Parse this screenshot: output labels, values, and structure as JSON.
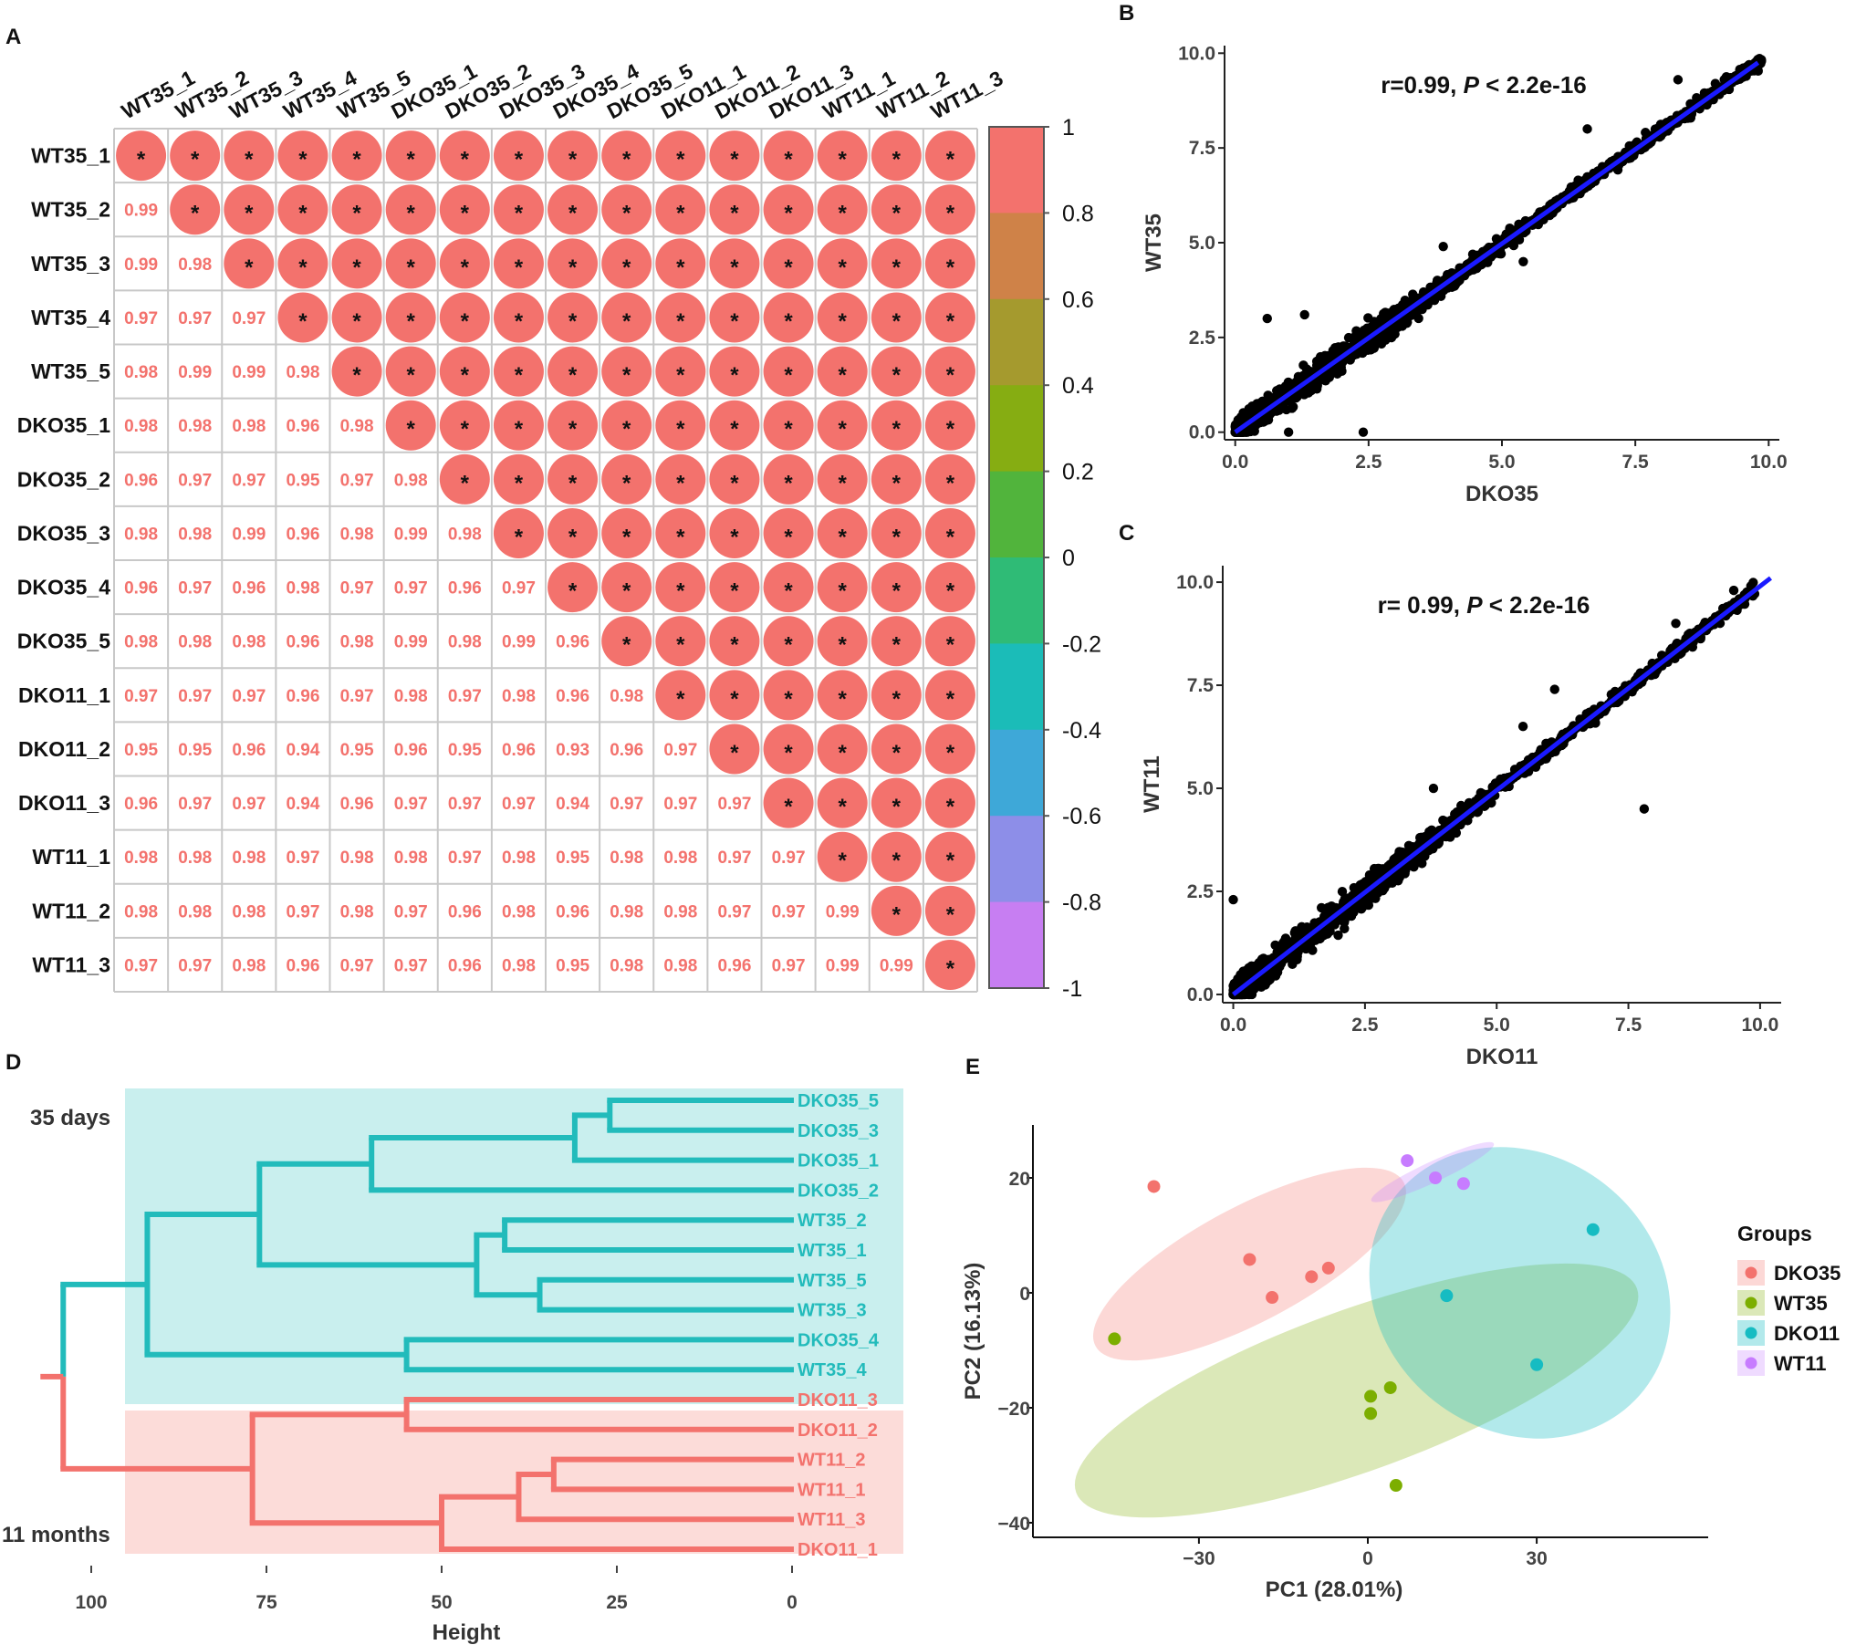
{
  "panel_labels": {
    "a": "A",
    "b": "B",
    "c": "C",
    "d": "D",
    "e": "E"
  },
  "chart_data": [
    {
      "id": "A",
      "type": "heatmap",
      "title": "",
      "samples": [
        "WT35_1",
        "WT35_2",
        "WT35_3",
        "WT35_4",
        "WT35_5",
        "DKO35_1",
        "DKO35_2",
        "DKO35_3",
        "DKO35_4",
        "DKO35_5",
        "DKO11_1",
        "DKO11_2",
        "DKO11_3",
        "WT11_1",
        "WT11_2",
        "WT11_3"
      ],
      "lower_values": [
        [],
        [
          0.99
        ],
        [
          0.99,
          0.98
        ],
        [
          0.97,
          0.97,
          0.97
        ],
        [
          0.98,
          0.99,
          0.99,
          0.98
        ],
        [
          0.98,
          0.98,
          0.98,
          0.96,
          0.98
        ],
        [
          0.96,
          0.97,
          0.97,
          0.95,
          0.97,
          0.98
        ],
        [
          0.98,
          0.98,
          0.99,
          0.96,
          0.98,
          0.99,
          0.98
        ],
        [
          0.96,
          0.97,
          0.96,
          0.98,
          0.97,
          0.97,
          0.96,
          0.97
        ],
        [
          0.98,
          0.98,
          0.98,
          0.96,
          0.98,
          0.99,
          0.98,
          0.99,
          0.96
        ],
        [
          0.97,
          0.97,
          0.97,
          0.96,
          0.97,
          0.98,
          0.97,
          0.98,
          0.96,
          0.98
        ],
        [
          0.95,
          0.95,
          0.96,
          0.94,
          0.95,
          0.96,
          0.95,
          0.96,
          0.93,
          0.96,
          0.97
        ],
        [
          0.96,
          0.97,
          0.97,
          0.94,
          0.96,
          0.97,
          0.97,
          0.97,
          0.94,
          0.97,
          0.97,
          0.97
        ],
        [
          0.98,
          0.98,
          0.98,
          0.97,
          0.98,
          0.98,
          0.97,
          0.98,
          0.95,
          0.98,
          0.98,
          0.97,
          0.97
        ],
        [
          0.98,
          0.98,
          0.98,
          0.97,
          0.98,
          0.97,
          0.96,
          0.98,
          0.96,
          0.98,
          0.98,
          0.97,
          0.97,
          0.99
        ],
        [
          0.97,
          0.97,
          0.98,
          0.96,
          0.97,
          0.97,
          0.96,
          0.98,
          0.95,
          0.98,
          0.98,
          0.96,
          0.97,
          0.99,
          0.99
        ]
      ],
      "upper_marker": "*",
      "colorbar": {
        "range": [
          -1,
          1
        ],
        "ticks": [
          "1",
          "0.8",
          "0.6",
          "0.4",
          "0.2",
          "0",
          "-0.2",
          "-0.4",
          "-0.6",
          "-0.8",
          "-1"
        ],
        "colors": [
          "#f3726d",
          "#cf8248",
          "#a59a2e",
          "#86ad12",
          "#51b43c",
          "#2fbb76",
          "#1bbcb8",
          "#3ea8d8",
          "#8d8ee8",
          "#c77ef2"
        ]
      },
      "accent_color": "#f3726d"
    },
    {
      "id": "B",
      "type": "scatter",
      "xlabel": "DKO35",
      "ylabel": "WT35",
      "xlim": [
        -0.2,
        10.2
      ],
      "ylim": [
        -0.2,
        10.2
      ],
      "xticks": [
        "0.0",
        "2.5",
        "5.0",
        "7.5",
        "10.0"
      ],
      "yticks": [
        "0.0",
        "2.5",
        "5.0",
        "7.5",
        "10.0"
      ],
      "annotation": {
        "r": "r=0.99,",
        "p_italic": "P",
        "p_rest": " < 2.2e-16"
      },
      "fit_line": {
        "x": [
          0.0,
          9.8
        ],
        "y": [
          0.0,
          9.75
        ]
      },
      "outliers": [
        [
          9.0,
          9.2
        ],
        [
          2.4,
          0.0
        ],
        [
          1.3,
          3.1
        ],
        [
          0.6,
          3.0
        ],
        [
          1.0,
          0.0
        ],
        [
          3.9,
          4.9
        ],
        [
          6.6,
          8.0
        ],
        [
          7.5,
          7.6
        ],
        [
          8.3,
          9.3
        ],
        [
          5.4,
          4.5
        ]
      ],
      "point_color": "#000000",
      "line_color": "#1a1aff"
    },
    {
      "id": "C",
      "type": "scatter",
      "xlabel": "DKO11",
      "ylabel": "WT11",
      "xlim": [
        -0.2,
        10.4
      ],
      "ylim": [
        -0.2,
        10.4
      ],
      "xticks": [
        "0.0",
        "2.5",
        "5.0",
        "7.5",
        "10.0"
      ],
      "yticks": [
        "0.0",
        "2.5",
        "5.0",
        "7.5",
        "10.0"
      ],
      "annotation": {
        "r": "r= 0.99,",
        "p_italic": "P",
        "p_rest": " < 2.2e-16"
      },
      "fit_line": {
        "x": [
          0.0,
          10.2
        ],
        "y": [
          0.0,
          10.1
        ]
      },
      "outliers": [
        [
          7.8,
          4.5
        ],
        [
          0.0,
          2.3
        ],
        [
          5.5,
          6.5
        ],
        [
          6.1,
          7.4
        ],
        [
          9.5,
          9.8
        ],
        [
          8.4,
          9.0
        ],
        [
          3.8,
          5.0
        ]
      ],
      "point_color": "#000000",
      "line_color": "#1a1aff"
    },
    {
      "id": "D",
      "type": "dendrogram",
      "xlabel": "Height",
      "xlim": [
        104,
        -16
      ],
      "xticks": [
        100,
        75,
        50,
        25,
        0
      ],
      "groups": [
        {
          "label": "35 days",
          "color": "#22bbbb",
          "bg": "#c9efee"
        },
        {
          "label": "11 months",
          "color": "#f3726d",
          "bg": "#fcdcd9"
        }
      ],
      "leaves": [
        {
          "name": "DKO35_5",
          "group": 0
        },
        {
          "name": "DKO35_3",
          "group": 0
        },
        {
          "name": "DKO35_1",
          "group": 0
        },
        {
          "name": "DKO35_2",
          "group": 0
        },
        {
          "name": "WT35_2",
          "group": 0
        },
        {
          "name": "WT35_1",
          "group": 0
        },
        {
          "name": "WT35_5",
          "group": 0
        },
        {
          "name": "WT35_3",
          "group": 0
        },
        {
          "name": "DKO35_4",
          "group": 0
        },
        {
          "name": "WT35_4",
          "group": 0
        },
        {
          "name": "DKO11_3",
          "group": 1
        },
        {
          "name": "DKO11_2",
          "group": 1
        },
        {
          "name": "WT11_2",
          "group": 1
        },
        {
          "name": "WT11_1",
          "group": 1
        },
        {
          "name": "WT11_3",
          "group": 1
        },
        {
          "name": "DKO11_1",
          "group": 1
        }
      ],
      "merges": [
        {
          "a": "L0",
          "b": "L1",
          "h": 26,
          "g": 0
        },
        {
          "a": "M0",
          "b": "L2",
          "h": 31,
          "g": 0
        },
        {
          "a": "M1",
          "b": "L3",
          "h": 60,
          "g": 0
        },
        {
          "a": "L4",
          "b": "L5",
          "h": 41,
          "g": 0
        },
        {
          "a": "L6",
          "b": "L7",
          "h": 36,
          "g": 0
        },
        {
          "a": "M3",
          "b": "M4",
          "h": 45,
          "g": 0
        },
        {
          "a": "M2",
          "b": "M5",
          "h": 76,
          "g": 0
        },
        {
          "a": "L8",
          "b": "L9",
          "h": 55,
          "g": 0
        },
        {
          "a": "M6",
          "b": "M7",
          "h": 92,
          "g": 0
        },
        {
          "a": "L10",
          "b": "L11",
          "h": 55,
          "g": 1
        },
        {
          "a": "L12",
          "b": "L13",
          "h": 34,
          "g": 1
        },
        {
          "a": "M10",
          "b": "L14",
          "h": 39,
          "g": 1
        },
        {
          "a": "M11",
          "b": "L15",
          "h": 50,
          "g": 1
        },
        {
          "a": "M9",
          "b": "M12",
          "h": 77,
          "g": 1
        },
        {
          "a": "M8",
          "b": "M13",
          "h": 104,
          "g": 2
        }
      ]
    },
    {
      "id": "E",
      "type": "scatter",
      "xlabel": "PC1 (28.01%)",
      "ylabel": "PC2 (16.13%)",
      "xlim": [
        -60,
        60
      ],
      "ylim": [
        -42,
        28
      ],
      "xticks": [
        -30,
        0,
        30
      ],
      "xtick_labels": [
        "−30",
        "0",
        "30"
      ],
      "yticks": [
        20,
        0,
        -20,
        -40
      ],
      "ytick_labels": [
        "20",
        "0",
        "−20",
        "−40"
      ],
      "legend_title": "Groups",
      "series": [
        {
          "name": "DKO35",
          "color": "#f3726d",
          "fill": "rgba(243,114,109,0.28)",
          "points": [
            [
              -38,
              18.5
            ],
            [
              -21,
              5.8
            ],
            [
              -10,
              2.8
            ],
            [
              -7,
              4.3
            ],
            [
              -17,
              -0.8
            ]
          ],
          "ellipse": {
            "cx": -21,
            "cy": 5,
            "rx": 31,
            "ry": 10,
            "angle": -28
          }
        },
        {
          "name": "WT35",
          "color": "#7cae00",
          "fill": "rgba(124,174,0,0.28)",
          "points": [
            [
              -45,
              -8
            ],
            [
              0.5,
              -18
            ],
            [
              4,
              -16.5
            ],
            [
              0.5,
              -21
            ],
            [
              5,
              -33.5
            ]
          ],
          "ellipse": {
            "cx": -2,
            "cy": -17,
            "rx": 53,
            "ry": 14,
            "angle": -20
          }
        },
        {
          "name": "DKO11",
          "color": "#16bcc2",
          "fill": "rgba(22,188,194,0.33)",
          "points": [
            [
              40,
              11
            ],
            [
              14,
              -0.5
            ],
            [
              30,
              -12.5
            ]
          ],
          "ellipse": {
            "cx": 27,
            "cy": 0,
            "rx": 28,
            "ry": 24,
            "angle": 38
          }
        },
        {
          "name": "WT11",
          "color": "#c77cff",
          "fill": "rgba(199,124,255,0.28)",
          "points": [
            [
              7,
              23
            ],
            [
              12,
              20
            ],
            [
              17,
              19
            ]
          ],
          "ellipse": {
            "cx": 11.5,
            "cy": 21,
            "rx": 12,
            "ry": 1.8,
            "angle": -25
          }
        }
      ]
    }
  ]
}
